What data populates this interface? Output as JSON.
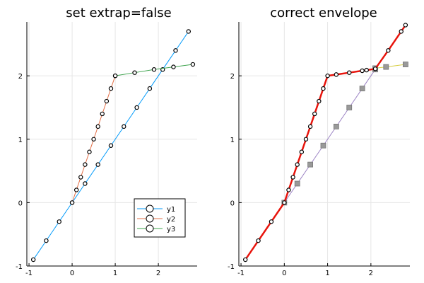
{
  "chart_data": [
    {
      "type": "line",
      "title": "set extrap=false",
      "xlim": [
        -1.05,
        2.9
      ],
      "ylim": [
        -1.0,
        2.85
      ],
      "xticks": [
        {
          "v": -1,
          "label": "-1"
        },
        {
          "v": 0,
          "label": "0"
        },
        {
          "v": 1,
          "label": "1"
        },
        {
          "v": 2,
          "label": "2"
        }
      ],
      "yticks": [
        {
          "v": -1,
          "label": "-1"
        },
        {
          "v": 0,
          "label": "0"
        },
        {
          "v": 1,
          "label": "1"
        },
        {
          "v": 2,
          "label": "2"
        }
      ],
      "grid": true,
      "legend": "bottom-right",
      "series": [
        {
          "name": "y1",
          "color": "#009AFA",
          "markers": true,
          "x": [
            -0.9,
            -0.6,
            -0.3,
            0.0,
            0.3,
            0.6,
            0.9,
            1.2,
            1.5,
            1.8,
            2.1,
            2.4,
            2.7
          ],
          "y": [
            -0.9,
            -0.6,
            -0.3,
            0.0,
            0.3,
            0.6,
            0.9,
            1.2,
            1.5,
            1.8,
            2.1,
            2.4,
            2.7
          ]
        },
        {
          "name": "y2",
          "color": "#E36F47",
          "markers": true,
          "x": [
            0.0,
            0.1,
            0.2,
            0.3,
            0.4,
            0.5,
            0.6,
            0.7,
            0.8,
            0.9,
            1.0
          ],
          "y": [
            0.0,
            0.2,
            0.4,
            0.6,
            0.8,
            1.0,
            1.2,
            1.4,
            1.6,
            1.8,
            2.0
          ]
        },
        {
          "name": "y3",
          "color": "#3EA44E",
          "markers": true,
          "x": [
            1.0,
            1.45,
            1.9,
            2.35,
            2.8
          ],
          "y": [
            2.0,
            2.05,
            2.1,
            2.14,
            2.18
          ]
        }
      ]
    },
    {
      "type": "line",
      "title": "correct envelope",
      "xlim": [
        -1.05,
        2.9
      ],
      "ylim": [
        -1.0,
        2.85
      ],
      "xticks": [
        {
          "v": -1,
          "label": "-1"
        },
        {
          "v": 0,
          "label": "0"
        },
        {
          "v": 1,
          "label": "1"
        },
        {
          "v": 2,
          "label": "2"
        }
      ],
      "yticks": [
        {
          "v": -1,
          "label": "-1"
        },
        {
          "v": 0,
          "label": "0"
        },
        {
          "v": 1,
          "label": "1"
        },
        {
          "v": 2,
          "label": "2"
        }
      ],
      "grid": true,
      "series": [
        {
          "color": "#9B82C4",
          "markers": "square",
          "x": [
            0.0,
            0.3,
            0.6,
            0.9,
            1.2,
            1.5,
            1.8,
            2.1
          ],
          "y": [
            0.0,
            0.3,
            0.6,
            0.9,
            1.2,
            1.5,
            1.8,
            2.1
          ]
        },
        {
          "color": "#D5CD40",
          "markers": "square",
          "x": [
            2.1,
            2.35,
            2.8
          ],
          "y": [
            2.12,
            2.14,
            2.18
          ]
        },
        {
          "color": "#E8140C",
          "markers": true,
          "width": 2.5,
          "x": [
            -0.9,
            -0.6,
            -0.3,
            0.0,
            0.1,
            0.2,
            0.3,
            0.4,
            0.5,
            0.6,
            0.7,
            0.8,
            0.9,
            1.0,
            1.2,
            1.5,
            1.8,
            1.9,
            2.1,
            2.4,
            2.7,
            2.8
          ],
          "y": [
            -0.9,
            -0.6,
            -0.3,
            0.0,
            0.2,
            0.4,
            0.6,
            0.8,
            1.0,
            1.2,
            1.4,
            1.6,
            1.8,
            2.0,
            2.02,
            2.05,
            2.08,
            2.09,
            2.11,
            2.4,
            2.7,
            2.8
          ]
        }
      ]
    }
  ]
}
